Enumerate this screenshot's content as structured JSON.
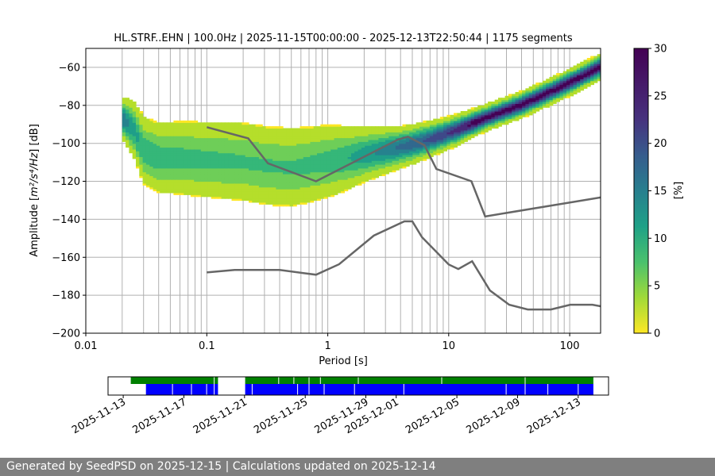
{
  "chart_data": [
    {
      "type": "heatmap",
      "title": "HL.STRF..EHN | 100.0Hz | 2025-11-15T00:00:00 - 2025-12-13T22:50:44 | 1175 segments",
      "xlabel": "Period [s]",
      "ylabel_prefix": "Amplitude [",
      "ylabel_unit": "m²/s⁴/Hz",
      "ylabel_suffix": "] [dB]",
      "x_scale": "log",
      "xlim": [
        0.01,
        180
      ],
      "ylim": [
        -200,
        -50
      ],
      "x_ticks": [
        {
          "value": 0.01,
          "label": "0.01"
        },
        {
          "value": 0.1,
          "label": "0.1"
        },
        {
          "value": 1,
          "label": "1"
        },
        {
          "value": 10,
          "label": "10"
        },
        {
          "value": 100,
          "label": "100"
        }
      ],
      "y_ticks": [
        {
          "value": -60,
          "label": "−60"
        },
        {
          "value": -80,
          "label": "−80"
        },
        {
          "value": -100,
          "label": "−100"
        },
        {
          "value": -120,
          "label": "−120"
        },
        {
          "value": -140,
          "label": "−140"
        },
        {
          "value": -160,
          "label": "−160"
        },
        {
          "value": -180,
          "label": "−180"
        },
        {
          "value": -200,
          "label": "−200"
        }
      ],
      "grid": true,
      "colormap": "viridis_r",
      "psd_density": {
        "min_period": 0.02,
        "median": [
          [
            0.02,
            -87
          ],
          [
            0.025,
            -93
          ],
          [
            0.03,
            -104
          ],
          [
            0.04,
            -108
          ],
          [
            0.06,
            -108
          ],
          [
            0.1,
            -109
          ],
          [
            0.2,
            -110
          ],
          [
            0.3,
            -112
          ],
          [
            0.5,
            -113
          ],
          [
            0.8,
            -111
          ],
          [
            1.5,
            -108
          ],
          [
            3,
            -104
          ],
          [
            5,
            -101
          ],
          [
            8,
            -97
          ],
          [
            12,
            -93
          ],
          [
            20,
            -87
          ],
          [
            40,
            -80
          ],
          [
            70,
            -73
          ],
          [
            110,
            -67
          ],
          [
            180,
            -60
          ]
        ],
        "spread": [
          [
            0.02,
            5
          ],
          [
            0.03,
            9
          ],
          [
            0.06,
            10
          ],
          [
            0.2,
            11
          ],
          [
            0.5,
            11
          ],
          [
            1,
            10
          ],
          [
            2,
            7
          ],
          [
            4,
            5
          ],
          [
            8,
            4
          ],
          [
            20,
            3
          ],
          [
            180,
            3
          ]
        ]
      },
      "noise_models": [
        {
          "points": [
            [
              0.1,
              -91.5
            ],
            [
              0.22,
              -97.4
            ],
            [
              0.32,
              -110.5
            ],
            [
              0.8,
              -120
            ],
            [
              3.8,
              -98
            ],
            [
              4.6,
              -96.5
            ],
            [
              6.3,
              -101
            ],
            [
              7.9,
              -113.5
            ],
            [
              15.4,
              -120
            ],
            [
              20,
              -138.5
            ],
            [
              180,
              -128.5
            ]
          ]
        },
        {
          "points": [
            [
              0.1,
              -168
            ],
            [
              0.17,
              -166.7
            ],
            [
              0.4,
              -166.7
            ],
            [
              0.8,
              -169.2
            ],
            [
              1.24,
              -163.7
            ],
            [
              2.4,
              -148.6
            ],
            [
              4.3,
              -141.1
            ],
            [
              5.0,
              -141.1
            ],
            [
              6.0,
              -149.4
            ],
            [
              10,
              -163.8
            ],
            [
              12,
              -166.2
            ],
            [
              15.6,
              -162.1
            ],
            [
              21.9,
              -177.5
            ],
            [
              31.6,
              -185
            ],
            [
              45,
              -187.5
            ],
            [
              70,
              -187.5
            ],
            [
              101,
              -185
            ],
            [
              154,
              -185
            ],
            [
              180,
              -185.8
            ]
          ]
        }
      ],
      "colorbar": {
        "label": "[%]",
        "range": [
          0,
          30
        ],
        "ticks": [
          {
            "value": 0,
            "label": "0"
          },
          {
            "value": 5,
            "label": "5"
          },
          {
            "value": 10,
            "label": "10"
          },
          {
            "value": 15,
            "label": "15"
          },
          {
            "value": 20,
            "label": "20"
          },
          {
            "value": 25,
            "label": "25"
          },
          {
            "value": 30,
            "label": "30"
          }
        ]
      }
    },
    {
      "type": "timeline",
      "title": "",
      "xlim": [
        "2025-11-12",
        "2025-12-15"
      ],
      "x_ticks": [
        "2025-11-13",
        "2025-11-17",
        "2025-11-21",
        "2025-11-25",
        "2025-11-29",
        "2025-12-01",
        "2025-12-05",
        "2025-12-09",
        "2025-12-13"
      ],
      "rows": [
        {
          "color": "#008000",
          "intervals": [
            [
              "2025-11-13 12:00",
              "2025-11-19 06:00"
            ],
            [
              "2025-11-21 01:00",
              "2025-12-14 00:00"
            ]
          ],
          "gaps": [
            "2025-11-19 00:00",
            "2025-11-23 06:00",
            "2025-11-24 06:00",
            "2025-11-25 06:00",
            "2025-11-26 00:00",
            "2025-11-28 12:00",
            "2025-12-04 00:00",
            "2025-12-09 12:00"
          ]
        },
        {
          "color": "#0000ff",
          "intervals": [
            [
              "2025-11-14 12:00",
              "2025-11-19 06:00"
            ],
            [
              "2025-11-21 01:00",
              "2025-12-14 00:00"
            ]
          ],
          "gaps": [
            "2025-11-16 06:00",
            "2025-11-17 12:00",
            "2025-11-18 12:00",
            "2025-11-19 00:00",
            "2025-11-21 12:00",
            "2025-11-24 12:00",
            "2025-11-25 06:00",
            "2025-11-26 06:00",
            "2025-11-28 06:00",
            "2025-12-01 12:00",
            "2025-12-08 06:00",
            "2025-12-09 12:00",
            "2025-12-11 00:00",
            "2025-12-13 00:00"
          ]
        }
      ]
    }
  ],
  "footer": "Generated by SeedPSD on 2025-12-15 | Calculations updated on 2025-12-14"
}
